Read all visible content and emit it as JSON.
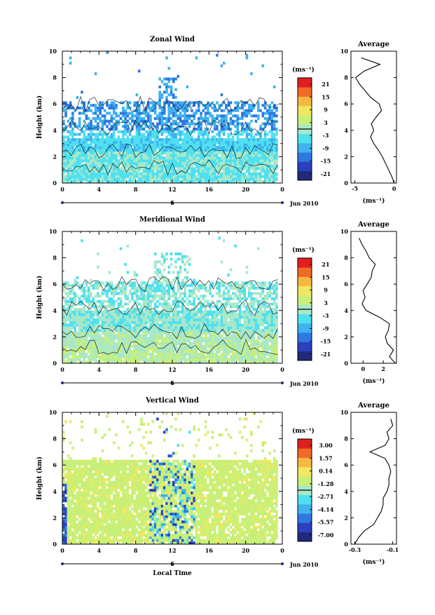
{
  "x_axis_label": "Local Time",
  "date_label": "Jun 2010",
  "date_tick": "6",
  "avg_title": "Average",
  "height_label": "Height  (km)",
  "units": "(ms⁻¹)",
  "colors": {
    "palette": [
      "#1f2a7a",
      "#2b3fbf",
      "#2e78e0",
      "#3fb2f0",
      "#4fe0f0",
      "#a8e8c8",
      "#c8f078",
      "#f0e860",
      "#f8b840",
      "#f06a28",
      "#e02020"
    ],
    "missing": "#ffffff",
    "contour": "#000000"
  },
  "chart_data": [
    {
      "type": "heatmap",
      "title": "Zonal Wind",
      "xlabel": "",
      "ylabel": "Height  (km)",
      "xlim": [
        0,
        24
      ],
      "ylim": [
        0,
        10
      ],
      "x_ticks": [
        "0",
        "4",
        "8",
        "12",
        "16",
        "20",
        "0"
      ],
      "y_ticks": [
        "0",
        "2",
        "4",
        "6",
        "8",
        "10"
      ],
      "colorbar": {
        "label": "(ms⁻¹)",
        "ticks": [
          "21",
          "15",
          "9",
          "3",
          "-3",
          "-9",
          "-15",
          "-21"
        ],
        "range": [
          -24,
          24
        ]
      },
      "profile": {
        "title": "Average",
        "xlabel": "(ms⁻¹)",
        "xlim": [
          -5.5,
          0.3
        ],
        "x_ticks": [
          "-5",
          "0"
        ],
        "heights": [
          0,
          0.5,
          1,
          1.5,
          2,
          2.5,
          3,
          3.5,
          4,
          4.5,
          5,
          5.5,
          6,
          6.5,
          7,
          7.5,
          8,
          8.5,
          9,
          9.5
        ],
        "values": [
          0,
          -0.3,
          -0.7,
          -1.1,
          -1.5,
          -2.0,
          -2.6,
          -3.0,
          -2.6,
          -2.9,
          -2.3,
          -1.6,
          -1.9,
          -3.0,
          -3.7,
          -4.4,
          -4.9,
          -3.8,
          -1.8,
          -4.2
        ]
      }
    },
    {
      "type": "heatmap",
      "title": "Meridional Wind",
      "xlabel": "",
      "ylabel": "Height  (km)",
      "xlim": [
        0,
        24
      ],
      "ylim": [
        0,
        10
      ],
      "x_ticks": [
        "0",
        "4",
        "8",
        "12",
        "16",
        "20",
        "0"
      ],
      "y_ticks": [
        "0",
        "2",
        "4",
        "6",
        "8",
        "10"
      ],
      "colorbar": {
        "label": "(ms⁻¹)",
        "ticks": [
          "21",
          "15",
          "9",
          "3",
          "-3",
          "-9",
          "-15",
          "-21"
        ],
        "range": [
          -24,
          24
        ]
      },
      "profile": {
        "title": "Average",
        "xlabel": "(ms⁻¹)",
        "xlim": [
          -1.2,
          3.3
        ],
        "x_ticks": [
          "0",
          "2"
        ],
        "heights": [
          0,
          0.5,
          1,
          1.5,
          2,
          2.5,
          3,
          3.5,
          4,
          4.5,
          5,
          5.5,
          6,
          6.5,
          7,
          7.5,
          8,
          8.5,
          9,
          9.5
        ],
        "values": [
          3.2,
          2.6,
          3.0,
          2.4,
          2.2,
          2.5,
          2.6,
          1.6,
          0.3,
          -0.1,
          0.2,
          0.0,
          0.4,
          0.8,
          0.9,
          1.2,
          0.6,
          0.3,
          -0.1,
          -0.4
        ]
      }
    },
    {
      "type": "heatmap",
      "title": "Vertical Wind",
      "xlabel": "Local Time",
      "ylabel": "Height  (km)",
      "xlim": [
        0,
        24
      ],
      "ylim": [
        0,
        10
      ],
      "x_ticks": [
        "0",
        "4",
        "8",
        "12",
        "16",
        "20",
        "0"
      ],
      "y_ticks": [
        "0",
        "2",
        "4",
        "6",
        "8",
        "10"
      ],
      "colorbar": {
        "label": "(ms⁻¹)",
        "ticks": [
          "3.00",
          "1.57",
          "0.14",
          "-1.28",
          "-2.71",
          "-4.14",
          "-5.57",
          "-7.00"
        ],
        "range": [
          -7.7,
          3.7
        ]
      },
      "profile": {
        "title": "Average",
        "xlabel": "(ms⁻¹)",
        "xlim": [
          -0.32,
          -0.08
        ],
        "x_ticks": [
          "-0.3",
          "-0.1"
        ],
        "heights": [
          0,
          0.5,
          1,
          1.5,
          2,
          2.5,
          3,
          3.5,
          4,
          4.5,
          5,
          5.5,
          6,
          6.5,
          7,
          7.5,
          8,
          8.5,
          9,
          9.5
        ],
        "values": [
          -0.3,
          -0.28,
          -0.25,
          -0.2,
          -0.18,
          -0.16,
          -0.15,
          -0.15,
          -0.13,
          -0.12,
          -0.12,
          -0.11,
          -0.12,
          -0.14,
          -0.22,
          -0.14,
          -0.12,
          -0.13,
          -0.1,
          -0.11
        ]
      }
    }
  ]
}
